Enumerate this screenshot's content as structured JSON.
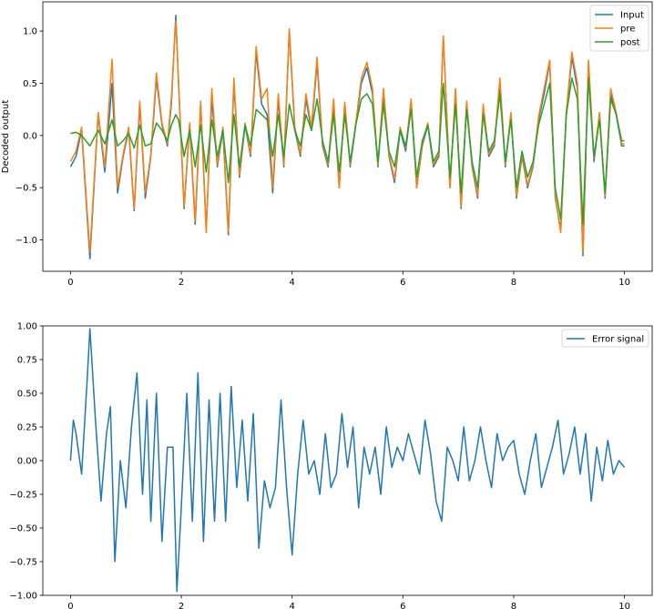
{
  "chart_data": [
    {
      "type": "line",
      "title": "",
      "xlabel": "",
      "ylabel": "Decoded output",
      "xlim": [
        -0.5,
        10.5
      ],
      "ylim": [
        -1.3,
        1.28
      ],
      "xticks": [
        0,
        2,
        4,
        6,
        8,
        10
      ],
      "yticks": [
        -1.0,
        -0.5,
        0.0,
        0.5,
        1.0
      ],
      "xtick_labels": [
        "0",
        "2",
        "4",
        "6",
        "8",
        "10"
      ],
      "ytick_labels": [
        "−1.0",
        "−0.5",
        "0.0",
        "0.5",
        "1.0"
      ],
      "legend_position": "top-right",
      "grid": false,
      "series": [
        {
          "name": "Input",
          "color": "#1f77b4",
          "x": [
            0.0,
            0.1,
            0.2,
            0.35,
            0.5,
            0.62,
            0.75,
            0.85,
            0.95,
            1.05,
            1.15,
            1.25,
            1.35,
            1.45,
            1.55,
            1.65,
            1.75,
            1.82,
            1.9,
            1.95,
            2.05,
            2.15,
            2.25,
            2.35,
            2.45,
            2.55,
            2.65,
            2.75,
            2.85,
            2.95,
            3.05,
            3.15,
            3.25,
            3.35,
            3.45,
            3.55,
            3.65,
            3.75,
            3.85,
            3.95,
            4.05,
            4.15,
            4.25,
            4.35,
            4.45,
            4.55,
            4.65,
            4.75,
            4.85,
            4.95,
            5.05,
            5.15,
            5.25,
            5.35,
            5.45,
            5.55,
            5.65,
            5.75,
            5.85,
            5.95,
            6.05,
            6.15,
            6.25,
            6.35,
            6.45,
            6.55,
            6.65,
            6.73,
            6.85,
            6.95,
            7.05,
            7.15,
            7.25,
            7.35,
            7.45,
            7.55,
            7.65,
            7.75,
            7.85,
            7.95,
            8.05,
            8.15,
            8.25,
            8.35,
            8.45,
            8.55,
            8.65,
            8.75,
            8.85,
            8.95,
            9.05,
            9.15,
            9.25,
            9.35,
            9.45,
            9.55,
            9.65,
            9.75,
            9.85,
            9.95,
            10.0
          ],
          "y": [
            -0.3,
            -0.2,
            0.05,
            -1.18,
            0.2,
            -0.35,
            0.5,
            -0.55,
            -0.2,
            0.05,
            -0.72,
            0.3,
            -0.6,
            -0.2,
            0.55,
            0.1,
            -0.1,
            0.3,
            1.15,
            0.5,
            -0.7,
            0.1,
            -0.85,
            0.3,
            -0.9,
            0.35,
            -0.3,
            0.05,
            -0.95,
            0.5,
            -0.4,
            0.1,
            -0.2,
            0.8,
            0.3,
            0.2,
            -0.55,
            0.35,
            -0.3,
            1.0,
            0.05,
            -0.2,
            0.35,
            0.05,
            0.7,
            -0.1,
            -0.3,
            0.3,
            -0.5,
            0.3,
            -0.3,
            0.1,
            0.5,
            0.65,
            0.4,
            -0.3,
            0.4,
            -0.2,
            -0.45,
            0.05,
            -0.15,
            0.3,
            -0.5,
            -0.1,
            0.1,
            -0.3,
            -0.2,
            0.95,
            -0.5,
            0.4,
            -0.7,
            0.3,
            -0.3,
            -0.6,
            0.25,
            -0.2,
            -0.1,
            0.5,
            -0.3,
            0.2,
            -0.6,
            -0.2,
            -0.5,
            -0.3,
            0.15,
            0.4,
            0.7,
            -0.6,
            -0.9,
            0.2,
            0.75,
            0.45,
            -1.15,
            0.7,
            -0.25,
            0.2,
            -0.6,
            0.4,
            0.2,
            -0.1,
            -0.1
          ]
        },
        {
          "name": "pre",
          "color": "#ff7f0e",
          "x": [
            0.0,
            0.1,
            0.2,
            0.35,
            0.5,
            0.62,
            0.75,
            0.85,
            0.95,
            1.05,
            1.15,
            1.25,
            1.35,
            1.45,
            1.55,
            1.65,
            1.75,
            1.82,
            1.9,
            1.95,
            2.05,
            2.15,
            2.25,
            2.35,
            2.45,
            2.55,
            2.65,
            2.75,
            2.85,
            2.95,
            3.05,
            3.15,
            3.25,
            3.35,
            3.45,
            3.55,
            3.65,
            3.75,
            3.85,
            3.95,
            4.05,
            4.15,
            4.25,
            4.35,
            4.45,
            4.55,
            4.65,
            4.75,
            4.85,
            4.95,
            5.05,
            5.15,
            5.25,
            5.35,
            5.45,
            5.55,
            5.65,
            5.75,
            5.85,
            5.95,
            6.05,
            6.15,
            6.25,
            6.35,
            6.45,
            6.55,
            6.65,
            6.73,
            6.85,
            6.95,
            7.05,
            7.15,
            7.25,
            7.35,
            7.45,
            7.55,
            7.65,
            7.75,
            7.85,
            7.95,
            8.05,
            8.15,
            8.25,
            8.35,
            8.45,
            8.55,
            8.65,
            8.75,
            8.85,
            8.95,
            9.05,
            9.15,
            9.25,
            9.35,
            9.45,
            9.55,
            9.65,
            9.75,
            9.85,
            9.95,
            10.0
          ],
          "y": [
            -0.25,
            -0.15,
            0.08,
            -1.12,
            0.22,
            -0.3,
            0.73,
            -0.5,
            -0.18,
            0.08,
            -0.7,
            0.33,
            -0.55,
            -0.18,
            0.6,
            0.12,
            -0.08,
            0.35,
            1.1,
            0.52,
            -0.68,
            0.12,
            -0.82,
            0.33,
            -0.93,
            0.45,
            -0.28,
            0.08,
            -0.92,
            0.55,
            -0.38,
            0.12,
            -0.18,
            0.85,
            0.35,
            0.45,
            -0.5,
            0.4,
            -0.28,
            1.02,
            0.08,
            -0.18,
            0.4,
            0.08,
            0.75,
            -0.08,
            -0.28,
            0.35,
            -0.5,
            0.32,
            -0.28,
            0.12,
            0.55,
            0.7,
            0.45,
            -0.28,
            0.45,
            -0.18,
            -0.42,
            0.08,
            -0.12,
            0.35,
            -0.5,
            -0.08,
            0.12,
            -0.28,
            -0.18,
            0.95,
            -0.5,
            0.45,
            -0.68,
            0.33,
            -0.28,
            -0.58,
            0.3,
            -0.18,
            -0.08,
            0.55,
            -0.28,
            0.22,
            -0.58,
            -0.18,
            -0.48,
            -0.28,
            0.18,
            0.45,
            0.72,
            -0.58,
            -0.93,
            0.22,
            0.8,
            0.5,
            -1.12,
            0.72,
            -0.22,
            0.22,
            -0.58,
            0.45,
            0.22,
            -0.08,
            -0.08
          ]
        },
        {
          "name": "post",
          "color": "#2ca02c",
          "x": [
            0.0,
            0.1,
            0.2,
            0.35,
            0.5,
            0.62,
            0.75,
            0.85,
            0.95,
            1.05,
            1.15,
            1.25,
            1.35,
            1.45,
            1.55,
            1.65,
            1.75,
            1.82,
            1.9,
            1.95,
            2.05,
            2.15,
            2.25,
            2.35,
            2.45,
            2.55,
            2.65,
            2.75,
            2.85,
            2.95,
            3.05,
            3.15,
            3.25,
            3.35,
            3.45,
            3.55,
            3.65,
            3.75,
            3.85,
            3.95,
            4.05,
            4.15,
            4.25,
            4.35,
            4.45,
            4.55,
            4.65,
            4.75,
            4.85,
            4.95,
            5.05,
            5.15,
            5.25,
            5.35,
            5.45,
            5.55,
            5.65,
            5.75,
            5.85,
            5.95,
            6.05,
            6.15,
            6.25,
            6.35,
            6.45,
            6.55,
            6.65,
            6.73,
            6.85,
            6.95,
            7.05,
            7.15,
            7.25,
            7.35,
            7.45,
            7.55,
            7.65,
            7.75,
            7.85,
            7.95,
            8.05,
            8.15,
            8.25,
            8.35,
            8.45,
            8.55,
            8.65,
            8.75,
            8.85,
            8.95,
            9.05,
            9.15,
            9.25,
            9.35,
            9.45,
            9.55,
            9.65,
            9.75,
            9.85,
            9.95,
            10.0
          ],
          "y": [
            0.02,
            0.03,
            0.0,
            -0.1,
            0.05,
            -0.08,
            0.15,
            -0.1,
            -0.05,
            0.02,
            -0.12,
            0.1,
            -0.1,
            -0.08,
            0.12,
            0.05,
            -0.05,
            0.1,
            0.2,
            0.15,
            -0.2,
            0.05,
            -0.3,
            0.1,
            -0.35,
            0.15,
            -0.2,
            0.05,
            -0.45,
            0.2,
            -0.3,
            0.1,
            -0.1,
            0.25,
            0.2,
            0.15,
            -0.2,
            0.2,
            -0.2,
            0.3,
            0.05,
            -0.1,
            0.2,
            0.05,
            0.35,
            -0.05,
            -0.25,
            0.2,
            -0.35,
            0.2,
            -0.25,
            0.1,
            0.35,
            0.4,
            0.3,
            -0.25,
            0.3,
            -0.15,
            -0.3,
            0.05,
            -0.1,
            0.25,
            -0.4,
            -0.05,
            0.1,
            -0.25,
            -0.15,
            0.5,
            -0.4,
            0.3,
            -0.55,
            0.25,
            -0.25,
            -0.5,
            0.2,
            -0.15,
            -0.05,
            0.4,
            -0.25,
            0.15,
            -0.5,
            -0.15,
            -0.4,
            -0.25,
            0.1,
            0.3,
            0.5,
            -0.5,
            -0.8,
            0.2,
            0.55,
            0.35,
            -0.85,
            0.55,
            -0.2,
            0.15,
            -0.55,
            0.35,
            0.2,
            -0.05,
            -0.05
          ]
        }
      ]
    },
    {
      "type": "line",
      "title": "",
      "xlabel": "",
      "ylabel": "",
      "xlim": [
        -0.5,
        10.5
      ],
      "ylim": [
        -1.0,
        1.0
      ],
      "xticks": [
        0,
        2,
        4,
        6,
        8,
        10
      ],
      "yticks": [
        -1.0,
        -0.75,
        -0.5,
        -0.25,
        0.0,
        0.25,
        0.5,
        0.75,
        1.0
      ],
      "xtick_labels": [
        "0",
        "2",
        "4",
        "6",
        "8",
        "10"
      ],
      "ytick_labels": [
        "−1.00",
        "−0.75",
        "−0.50",
        "−0.25",
        "0.00",
        "0.25",
        "0.50",
        "0.75",
        "1.00"
      ],
      "legend_position": "top-right",
      "grid": false,
      "series": [
        {
          "name": "Error signal",
          "color": "#1f77b4",
          "x": [
            0.0,
            0.05,
            0.1,
            0.2,
            0.3,
            0.35,
            0.45,
            0.55,
            0.65,
            0.72,
            0.8,
            0.9,
            1.0,
            1.1,
            1.2,
            1.3,
            1.38,
            1.45,
            1.55,
            1.65,
            1.75,
            1.85,
            1.92,
            2.0,
            2.1,
            2.2,
            2.3,
            2.4,
            2.5,
            2.6,
            2.7,
            2.8,
            2.9,
            3.0,
            3.1,
            3.2,
            3.3,
            3.4,
            3.5,
            3.6,
            3.7,
            3.8,
            3.9,
            4.0,
            4.1,
            4.2,
            4.3,
            4.4,
            4.5,
            4.6,
            4.7,
            4.8,
            4.9,
            5.0,
            5.1,
            5.2,
            5.3,
            5.4,
            5.5,
            5.6,
            5.7,
            5.8,
            5.9,
            6.0,
            6.1,
            6.2,
            6.3,
            6.4,
            6.5,
            6.6,
            6.7,
            6.8,
            6.9,
            7.0,
            7.1,
            7.2,
            7.3,
            7.4,
            7.5,
            7.6,
            7.7,
            7.8,
            7.9,
            8.0,
            8.1,
            8.2,
            8.3,
            8.4,
            8.5,
            8.6,
            8.7,
            8.8,
            8.9,
            9.0,
            9.1,
            9.2,
            9.3,
            9.4,
            9.5,
            9.6,
            9.7,
            9.8,
            9.9,
            10.0
          ],
          "y": [
            0.0,
            0.3,
            0.2,
            -0.1,
            0.6,
            0.98,
            0.3,
            -0.3,
            0.2,
            0.4,
            -0.75,
            0.0,
            -0.35,
            0.25,
            0.65,
            -0.25,
            0.45,
            -0.45,
            0.5,
            -0.6,
            0.1,
            0.1,
            -0.97,
            -0.35,
            0.5,
            -0.45,
            0.65,
            -0.6,
            0.45,
            -0.45,
            0.5,
            -0.45,
            0.55,
            -0.2,
            0.3,
            -0.3,
            0.35,
            -0.65,
            -0.15,
            -0.35,
            -0.2,
            0.45,
            -0.2,
            -0.7,
            -0.1,
            0.3,
            -0.1,
            0.0,
            -0.25,
            0.2,
            -0.2,
            -0.1,
            0.35,
            -0.05,
            0.25,
            -0.35,
            0.1,
            -0.1,
            0.1,
            -0.25,
            0.25,
            -0.05,
            0.1,
            0.0,
            0.2,
            0.05,
            -0.1,
            0.3,
            0.05,
            -0.3,
            -0.45,
            0.1,
            0.0,
            -0.15,
            0.25,
            -0.15,
            0.0,
            0.25,
            0.0,
            -0.2,
            0.2,
            0.0,
            0.1,
            0.15,
            -0.1,
            -0.25,
            0.0,
            0.2,
            -0.2,
            -0.05,
            0.1,
            0.3,
            -0.1,
            0.05,
            0.25,
            -0.1,
            0.2,
            -0.3,
            0.1,
            -0.15,
            0.15,
            -0.1,
            0.0,
            -0.05
          ]
        }
      ]
    }
  ]
}
